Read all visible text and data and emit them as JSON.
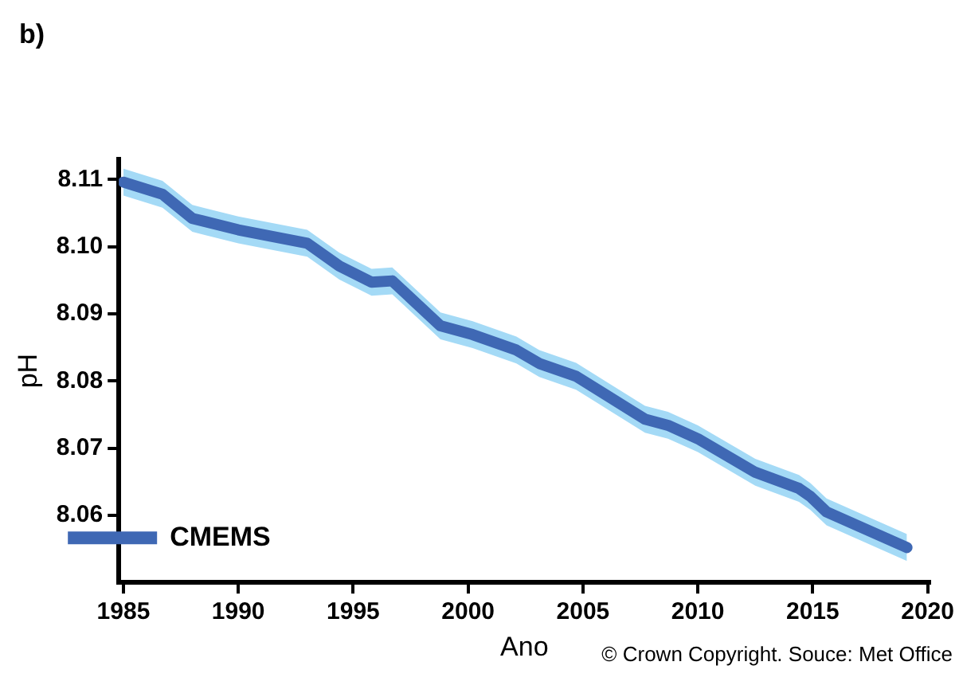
{
  "chart_data": {
    "type": "line",
    "title": "b)",
    "xlabel": "Ano",
    "ylabel": "pH",
    "annotations": [
      "© Crown Copyright. Souce: Met Office"
    ],
    "x": [
      1985,
      1986.7,
      1988,
      1990,
      1993,
      1994.4,
      1995.8,
      1996.7,
      1998.8,
      2000.2,
      2002.1,
      2003.1,
      2004.7,
      2007.7,
      2008.7,
      2010,
      2012.5,
      2014.4,
      2014.9,
      2015.6,
      2019.1
    ],
    "series": [
      {
        "name": "CMEMS",
        "color": "#3f68b4",
        "values": [
          8.1096,
          8.1078,
          8.1042,
          8.1025,
          8.1005,
          8.0971,
          8.0947,
          8.0949,
          8.0882,
          8.0869,
          8.0846,
          8.0826,
          8.0807,
          8.0743,
          8.0734,
          8.0714,
          8.0664,
          8.064,
          8.0628,
          8.0605,
          8.0552
        ],
        "lower": [
          8.1076,
          8.1058,
          8.1022,
          8.1005,
          8.0985,
          8.0951,
          8.0927,
          8.0929,
          8.0862,
          8.0849,
          8.0826,
          8.0806,
          8.0787,
          8.0723,
          8.0714,
          8.0694,
          8.0644,
          8.062,
          8.0608,
          8.0585,
          8.0532
        ],
        "upper": [
          8.1116,
          8.1098,
          8.1062,
          8.1045,
          8.1025,
          8.0991,
          8.0967,
          8.0969,
          8.0902,
          8.0889,
          8.0866,
          8.0846,
          8.0827,
          8.0763,
          8.0754,
          8.0734,
          8.0684,
          8.066,
          8.0648,
          8.0625,
          8.0572
        ]
      }
    ],
    "xlim": [
      1984.8,
      2020.1
    ],
    "xticks": [
      1985,
      1990,
      1995,
      2000,
      2005,
      2010,
      2015,
      2020
    ],
    "ylim": [
      8.05,
      8.113
    ],
    "yticks": [
      8.06,
      8.07,
      8.08,
      8.09,
      {
        "value": 8.1,
        "label": "8.10"
      },
      8.11
    ],
    "grid": false,
    "legend": "bottom left",
    "marker": "none"
  }
}
